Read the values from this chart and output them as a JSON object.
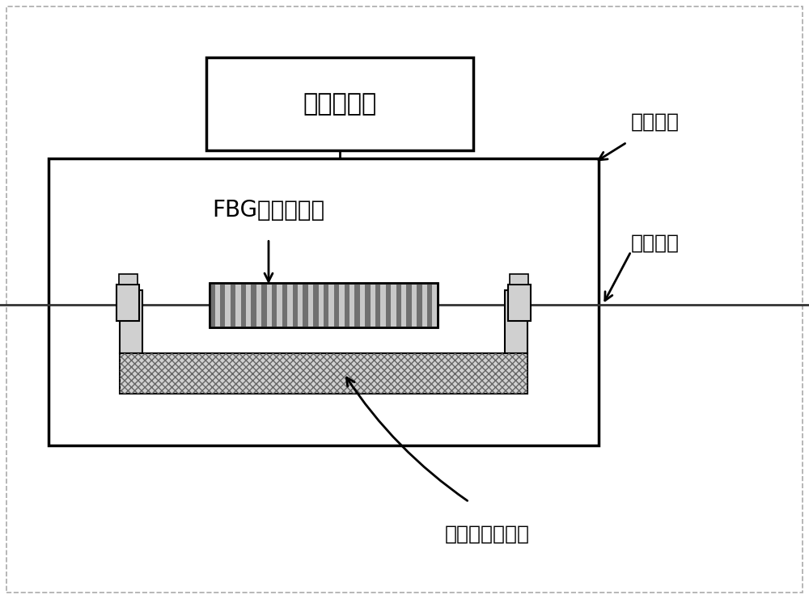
{
  "bg_color": "#ffffff",
  "border_color": "#000000",
  "light_gray": "#d0d0d0",
  "medium_gray": "#b0b0b0",
  "temp_controller_label": "温度控制器",
  "oven_label": "恒温温箱",
  "fbg_label": "FBG背景滤波器",
  "fiber_label": "传导光纤",
  "piezo_label": "压电精密调节台",
  "figure_bg": "#ffffff",
  "outer_border": "#888888"
}
